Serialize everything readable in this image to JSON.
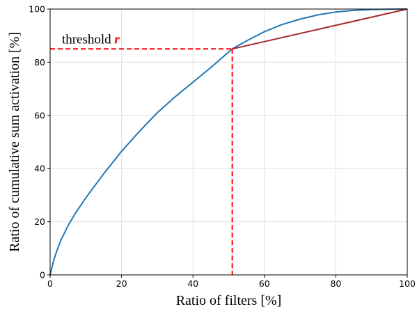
{
  "chart_data": {
    "type": "line",
    "title": "",
    "xlabel": "Ratio of filters [%]",
    "ylabel": "Ratio of cumulative sum activation [%]",
    "xlim": [
      0,
      100
    ],
    "ylim": [
      0,
      100
    ],
    "xticks": [
      0,
      20,
      40,
      60,
      80,
      100
    ],
    "yticks": [
      0,
      20,
      40,
      60,
      80,
      100
    ],
    "grid": true,
    "series": [
      {
        "color": "#1f77b4",
        "x": [
          0,
          1,
          2,
          3,
          5,
          7,
          10,
          15,
          20,
          25,
          30,
          35,
          40,
          45,
          51,
          55,
          60,
          65,
          70,
          75,
          80,
          85,
          90,
          95,
          100
        ],
        "y": [
          0,
          5.5,
          9.5,
          13,
          18.5,
          23,
          29,
          38,
          46.5,
          54,
          61,
          67,
          72.5,
          78,
          85,
          88,
          91.5,
          94.2,
          96.2,
          97.8,
          98.9,
          99.5,
          99.8,
          99.95,
          100
        ]
      },
      {
        "color": "#a52a2a",
        "x": [
          51,
          100
        ],
        "y": [
          85,
          100
        ]
      }
    ],
    "annotations": {
      "threshold_text": "threshold ",
      "threshold_var": "r",
      "threshold_x": 51,
      "threshold_y": 85,
      "threshold_color": "#ff0000"
    }
  }
}
